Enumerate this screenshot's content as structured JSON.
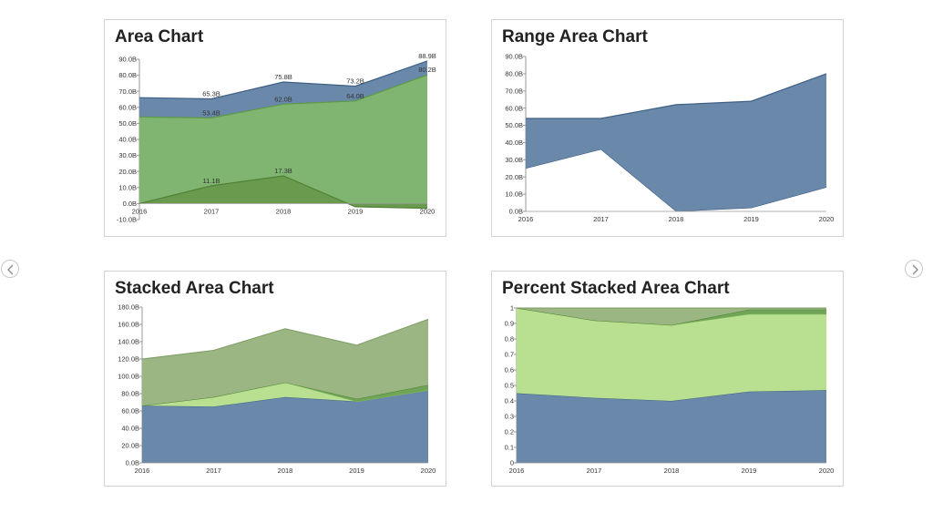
{
  "nav": {
    "prev_icon": "chevron-left-icon",
    "next_icon": "chevron-right-icon"
  },
  "colors": {
    "blue": "#6a89aa",
    "blue_line": "#3e5f85",
    "green_dark": "#6fa556",
    "green_mid": "#8fb17a",
    "green_light": "#b8e090",
    "axis": "#888888",
    "text": "#222222"
  },
  "chart_data": [
    {
      "type": "area",
      "title": "Area Chart",
      "categories": [
        "2016",
        "2017",
        "2018",
        "2019",
        "2020"
      ],
      "yticks": [
        "-10.0B",
        "0.0B",
        "10.0B",
        "20.0B",
        "30.0B",
        "40.0B",
        "50.0B",
        "60.0B",
        "70.0B",
        "80.0B",
        "90.0B"
      ],
      "ylim": [
        -10,
        90
      ],
      "series": [
        {
          "values": [
            66,
            65.3,
            75.8,
            73.2,
            88.9
          ],
          "labels": [
            "",
            "65.3B",
            "75.8B",
            "73.2B",
            "88.9B"
          ],
          "color": "#6a89aa",
          "stroke": "#3e5f85"
        },
        {
          "values": [
            54,
            53.4,
            62.0,
            64.0,
            80.2
          ],
          "labels": [
            "",
            "53.4B",
            "62.0B",
            "64.0B",
            "80.2B"
          ],
          "color": "#7fb570",
          "stroke": "#5c9a45"
        },
        {
          "values": [
            0,
            11.1,
            17.3,
            -2,
            -3
          ],
          "labels": [
            "",
            "11.1B",
            "17.3B",
            "",
            ""
          ],
          "color": "#6a9a4e",
          "stroke": "#4f8035"
        }
      ]
    },
    {
      "type": "range-area",
      "title": "Range Area Chart",
      "categories": [
        "2016",
        "2017",
        "2018",
        "2019",
        "2020"
      ],
      "yticks": [
        "0.0B",
        "10.0B",
        "20.0B",
        "30.0B",
        "40.0B",
        "50.0B",
        "60.0B",
        "70.0B",
        "80.0B",
        "90.0B"
      ],
      "ylim": [
        0,
        90
      ],
      "high": [
        54,
        54,
        62,
        64,
        80
      ],
      "low": [
        25,
        36,
        0,
        2,
        14
      ],
      "color": "#6a89aa",
      "stroke": "#3e5f85"
    },
    {
      "type": "stacked-area",
      "title": "Stacked Area Chart",
      "categories": [
        "2016",
        "2017",
        "2018",
        "2019",
        "2020"
      ],
      "yticks": [
        "0.0B",
        "20.0B",
        "40.0B",
        "60.0B",
        "80.0B",
        "100.0B",
        "120.0B",
        "140.0B",
        "160.0B",
        "180.0B"
      ],
      "ylim": [
        0,
        180
      ],
      "series": [
        {
          "values": [
            66,
            65,
            76,
            71,
            84
          ],
          "color": "#6a89aa",
          "stroke": "#3e5f85"
        },
        {
          "values": [
            0,
            11,
            17,
            0,
            0
          ],
          "color": "#b8e090",
          "stroke": "#8cc060"
        },
        {
          "values": [
            0,
            0,
            0,
            3,
            6
          ],
          "color": "#6fa556",
          "stroke": "#4f8035"
        },
        {
          "values": [
            54,
            54,
            62,
            62,
            76
          ],
          "color": "#9bb683",
          "stroke": "#7c9c62"
        }
      ]
    },
    {
      "type": "percent-stacked-area",
      "title": "Percent Stacked Area Chart",
      "categories": [
        "2016",
        "2017",
        "2018",
        "2019",
        "2020"
      ],
      "yticks": [
        "0",
        "0.1",
        "0.2",
        "0.3",
        "0.4",
        "0.5",
        "0.6",
        "0.7",
        "0.8",
        "0.9",
        "1"
      ],
      "ylim": [
        0,
        1
      ],
      "series": [
        {
          "values": [
            0.45,
            0.42,
            0.4,
            0.46,
            0.47
          ],
          "color": "#6a89aa",
          "stroke": "#3e5f85"
        },
        {
          "values": [
            0.55,
            0.5,
            0.49,
            0.5,
            0.49
          ],
          "color": "#b8e090",
          "stroke": "#8cc060"
        },
        {
          "values": [
            0,
            0,
            0,
            0.03,
            0.03
          ],
          "color": "#6fa556",
          "stroke": "#4f8035"
        },
        {
          "values": [
            0,
            0.08,
            0.11,
            0.01,
            0.01
          ],
          "color": "#9bb683",
          "stroke": "#7c9c62"
        }
      ]
    }
  ]
}
